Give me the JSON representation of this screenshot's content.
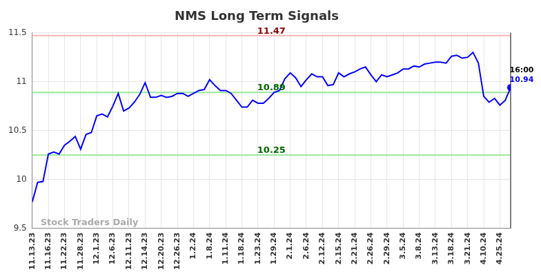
{
  "chart_data": {
    "type": "line",
    "title": "NMS Long Term Signals",
    "categories": [
      "11.13.23",
      null,
      null,
      "11.16.23",
      null,
      null,
      "11.22.23",
      null,
      null,
      "11.28.23",
      null,
      null,
      "12.1.23",
      null,
      null,
      "12.6.23",
      null,
      null,
      "12.11.23",
      null,
      null,
      "12.14.23",
      null,
      null,
      "12.20.23",
      null,
      null,
      "12.26.23",
      null,
      null,
      "1.2.24",
      null,
      null,
      "1.8.24",
      null,
      null,
      "1.11.24",
      null,
      null,
      "1.18.24",
      null,
      null,
      "1.23.24",
      null,
      null,
      "1.29.24",
      null,
      null,
      "2.1.24",
      null,
      null,
      "2.6.24",
      null,
      null,
      "2.12.24",
      null,
      null,
      "2.15.24",
      null,
      null,
      "2.21.24",
      null,
      null,
      "2.26.24",
      null,
      null,
      "2.29.24",
      null,
      null,
      "3.5.24",
      null,
      null,
      "3.8.24",
      null,
      null,
      "3.13.24",
      null,
      null,
      "3.18.24",
      null,
      null,
      "3.21.24",
      null,
      null,
      "4.10.24",
      null,
      null,
      "4.25.24",
      null,
      null
    ],
    "series": [
      {
        "name": "NMS",
        "color": "#0000ff",
        "values": [
          9.77,
          9.97,
          9.98,
          10.26,
          10.28,
          10.26,
          10.35,
          10.39,
          10.44,
          10.31,
          10.46,
          10.48,
          10.65,
          10.67,
          10.64,
          10.75,
          10.88,
          10.7,
          10.73,
          10.79,
          10.87,
          10.99,
          10.84,
          10.84,
          10.86,
          10.84,
          10.85,
          10.88,
          10.88,
          10.85,
          10.88,
          10.91,
          10.92,
          11.02,
          10.96,
          10.91,
          10.91,
          10.88,
          10.81,
          10.74,
          10.74,
          10.81,
          10.78,
          10.78,
          10.83,
          10.89,
          10.91,
          11.03,
          11.09,
          11.04,
          10.95,
          11.02,
          11.08,
          11.05,
          11.05,
          10.96,
          10.97,
          11.09,
          11.05,
          11.08,
          11.1,
          11.13,
          11.15,
          11.07,
          11.0,
          11.07,
          11.05,
          11.07,
          11.09,
          11.13,
          11.13,
          11.16,
          11.15,
          11.18,
          11.19,
          11.2,
          11.2,
          11.19,
          11.26,
          11.27,
          11.24,
          11.25,
          11.3,
          11.19,
          10.85,
          10.79,
          10.83,
          10.76,
          10.81,
          10.94
        ]
      }
    ],
    "reference_lines": [
      {
        "value": 11.47,
        "label": "11.47",
        "color": "#ffb3b3",
        "label_color": "#8b0000"
      },
      {
        "value": 10.89,
        "label": "10.89",
        "color": "#99e699",
        "label_color": "#006400"
      },
      {
        "value": 10.25,
        "label": "10.25",
        "color": "#99e699",
        "label_color": "#006400"
      }
    ],
    "end_marker": {
      "text": "16:00",
      "value": 10.94
    },
    "watermark": "Stock Traders Daily",
    "ylim": [
      9.5,
      11.5
    ],
    "yticks": [
      9.5,
      10,
      10.5,
      11,
      11.5
    ],
    "grid": true
  }
}
